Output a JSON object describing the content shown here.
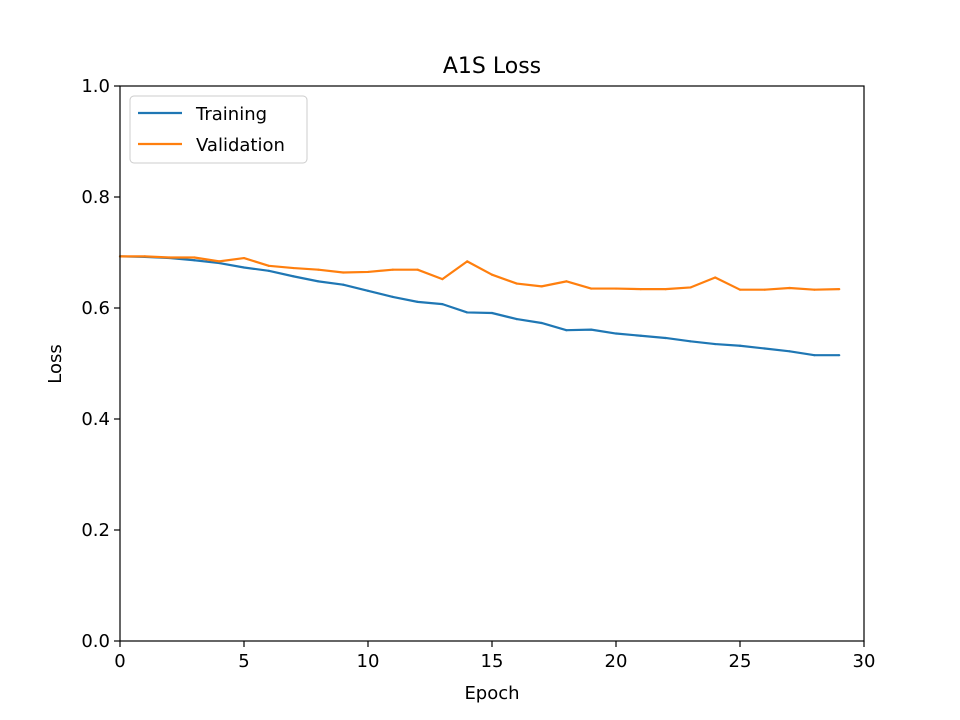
{
  "chart_data": {
    "type": "line",
    "title": "A1S Loss",
    "xlabel": "Epoch",
    "ylabel": "Loss",
    "xlim": [
      0,
      30
    ],
    "ylim": [
      0,
      1
    ],
    "xticks": [
      "0",
      "5",
      "10",
      "15",
      "20",
      "25",
      "30"
    ],
    "yticks": [
      "0.0",
      "0.2",
      "0.4",
      "0.6",
      "0.8",
      "1.0"
    ],
    "grid": false,
    "legend_position": "top-left",
    "x": [
      0,
      1,
      2,
      3,
      4,
      5,
      6,
      7,
      8,
      9,
      10,
      11,
      12,
      13,
      14,
      15,
      16,
      17,
      18,
      19,
      20,
      21,
      22,
      23,
      24,
      25,
      26,
      27,
      28,
      29
    ],
    "series": [
      {
        "name": "Training",
        "color": "#1f77b4",
        "values": [
          0.693,
          0.692,
          0.69,
          0.686,
          0.681,
          0.673,
          0.667,
          0.657,
          0.648,
          0.642,
          0.631,
          0.62,
          0.611,
          0.607,
          0.592,
          0.591,
          0.58,
          0.573,
          0.56,
          0.561,
          0.554,
          0.55,
          0.546,
          0.54,
          0.535,
          0.532,
          0.527,
          0.522,
          0.515,
          0.515
        ]
      },
      {
        "name": "Validation",
        "color": "#ff7f0e",
        "values": [
          0.693,
          0.693,
          0.691,
          0.691,
          0.684,
          0.69,
          0.676,
          0.672,
          0.669,
          0.664,
          0.665,
          0.669,
          0.669,
          0.652,
          0.684,
          0.66,
          0.644,
          0.639,
          0.648,
          0.635,
          0.635,
          0.634,
          0.634,
          0.637,
          0.655,
          0.633,
          0.633,
          0.636,
          0.633,
          0.634
        ]
      }
    ]
  }
}
